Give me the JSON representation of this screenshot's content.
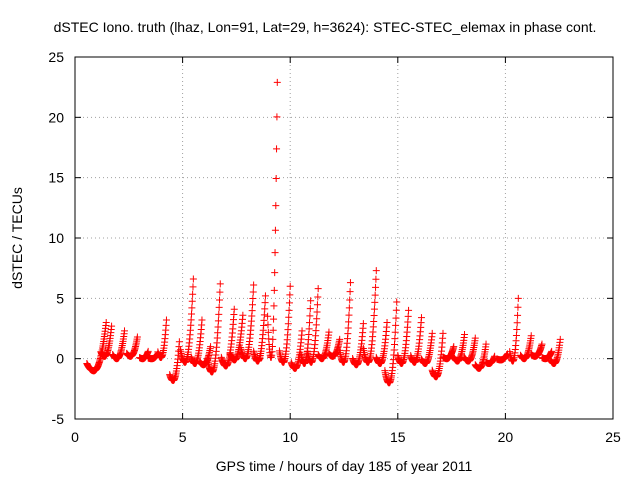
{
  "chart_data": {
    "type": "scatter",
    "title": "dSTEC Iono. truth (lhaz, Lon=91, Lat=29, h=3624): STEC-STEC_elemax in phase cont.",
    "xlabel": "GPS time / hours of day 185 of year 2011",
    "ylabel": "dSTEC  / TECUs",
    "xlim": [
      0,
      25
    ],
    "ylim": [
      -5,
      25
    ],
    "xticks": [
      0,
      5,
      10,
      15,
      20,
      25
    ],
    "yticks": [
      -5,
      0,
      5,
      10,
      15,
      20,
      25
    ],
    "xtick_labels": [
      "0",
      "5",
      "10",
      "15",
      "20",
      "25"
    ],
    "ytick_labels": [
      "-5",
      "0",
      "5",
      "10",
      "15",
      "20",
      "25"
    ],
    "grid": true,
    "legend": "none",
    "marker": "+",
    "color": "#ff0000",
    "arcs": [
      [
        0.55,
        1.45,
        -1.0,
        3.0
      ],
      [
        1.2,
        1.7,
        0.2,
        2.7
      ],
      [
        1.75,
        2.3,
        0.0,
        2.3
      ],
      [
        2.4,
        2.9,
        0.2,
        1.8
      ],
      [
        3.0,
        3.4,
        0.0,
        0.6
      ],
      [
        3.4,
        3.85,
        0.0,
        0.4
      ],
      [
        3.85,
        4.25,
        0.1,
        3.2
      ],
      [
        4.4,
        4.85,
        -1.8,
        1.4
      ],
      [
        4.9,
        5.5,
        -0.3,
        6.6
      ],
      [
        5.4,
        5.9,
        -0.4,
        3.2
      ],
      [
        5.8,
        6.3,
        -0.5,
        1.0
      ],
      [
        6.15,
        6.75,
        -1.1,
        6.2
      ],
      [
        6.8,
        7.4,
        -0.6,
        4.1
      ],
      [
        7.2,
        7.8,
        -0.1,
        3.6
      ],
      [
        7.7,
        8.3,
        0.0,
        6.1
      ],
      [
        8.3,
        8.85,
        -0.2,
        5.2
      ],
      [
        8.95,
        9.4,
        0.1,
        22.9
      ],
      [
        9.5,
        10.0,
        -0.3,
        6.0
      ],
      [
        10.05,
        10.55,
        -0.8,
        2.3
      ],
      [
        10.5,
        10.95,
        -0.4,
        4.8
      ],
      [
        10.8,
        11.3,
        -0.3,
        5.8
      ],
      [
        11.3,
        11.8,
        0.0,
        2.2
      ],
      [
        11.8,
        12.3,
        0.2,
        1.6
      ],
      [
        12.3,
        12.8,
        -0.3,
        6.3
      ],
      [
        12.9,
        13.4,
        -0.5,
        2.9
      ],
      [
        13.4,
        14.0,
        -0.3,
        7.3
      ],
      [
        14.0,
        14.5,
        -0.4,
        3.0
      ],
      [
        14.4,
        14.95,
        -2.0,
        4.7
      ],
      [
        15.0,
        15.5,
        -0.4,
        4.0
      ],
      [
        15.6,
        16.1,
        -0.3,
        3.4
      ],
      [
        16.1,
        16.6,
        -0.4,
        2.1
      ],
      [
        16.6,
        17.1,
        -1.5,
        2.1
      ],
      [
        17.1,
        17.6,
        0.0,
        1.0
      ],
      [
        17.6,
        18.1,
        -0.2,
        2.0
      ],
      [
        18.1,
        18.6,
        -0.2,
        1.7
      ],
      [
        18.6,
        19.1,
        -0.8,
        1.2
      ],
      [
        19.1,
        19.5,
        -0.4,
        0.2
      ],
      [
        19.6,
        20.1,
        -0.1,
        0.4
      ],
      [
        20.2,
        20.6,
        -0.2,
        5.0
      ],
      [
        20.7,
        21.2,
        0.0,
        1.9
      ],
      [
        21.2,
        21.7,
        0.2,
        1.2
      ],
      [
        21.7,
        22.15,
        0.0,
        0.6
      ],
      [
        22.1,
        22.55,
        -0.4,
        1.6
      ]
    ]
  }
}
